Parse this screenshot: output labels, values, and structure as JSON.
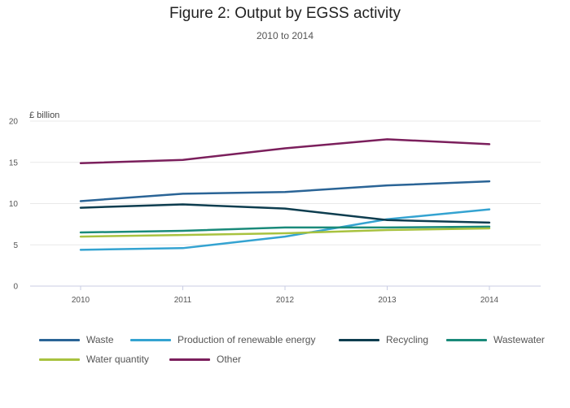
{
  "chart_data": {
    "type": "line",
    "title": "Figure 2: Output by EGSS activity",
    "subtitle": "2010 to 2014",
    "ylabel": "£ billion",
    "xlabel": "",
    "x": [
      "2010",
      "2011",
      "2012",
      "2013",
      "2014"
    ],
    "ylim": [
      0,
      20
    ],
    "yticks": [
      "0",
      "5",
      "10",
      "15",
      "20"
    ],
    "grid": true,
    "legend_position": "bottom",
    "series": [
      {
        "name": "Waste",
        "color": "#2a6496",
        "values": [
          10.3,
          11.2,
          11.4,
          12.2,
          12.7
        ]
      },
      {
        "name": "Production of renewable energy",
        "color": "#34a3d1",
        "values": [
          4.4,
          4.6,
          6.0,
          8.1,
          9.3
        ]
      },
      {
        "name": "Recycling",
        "color": "#0d3d4f",
        "values": [
          9.5,
          9.9,
          9.4,
          8.0,
          7.7
        ]
      },
      {
        "name": "Wastewater",
        "color": "#1a8a7a",
        "values": [
          6.5,
          6.7,
          7.1,
          7.1,
          7.2
        ]
      },
      {
        "name": "Water quantity",
        "color": "#a8c23f",
        "values": [
          6.0,
          6.2,
          6.4,
          6.8,
          7.0
        ]
      },
      {
        "name": "Other",
        "color": "#7b1f5c",
        "values": [
          14.9,
          15.3,
          16.7,
          17.8,
          17.2
        ]
      }
    ]
  }
}
